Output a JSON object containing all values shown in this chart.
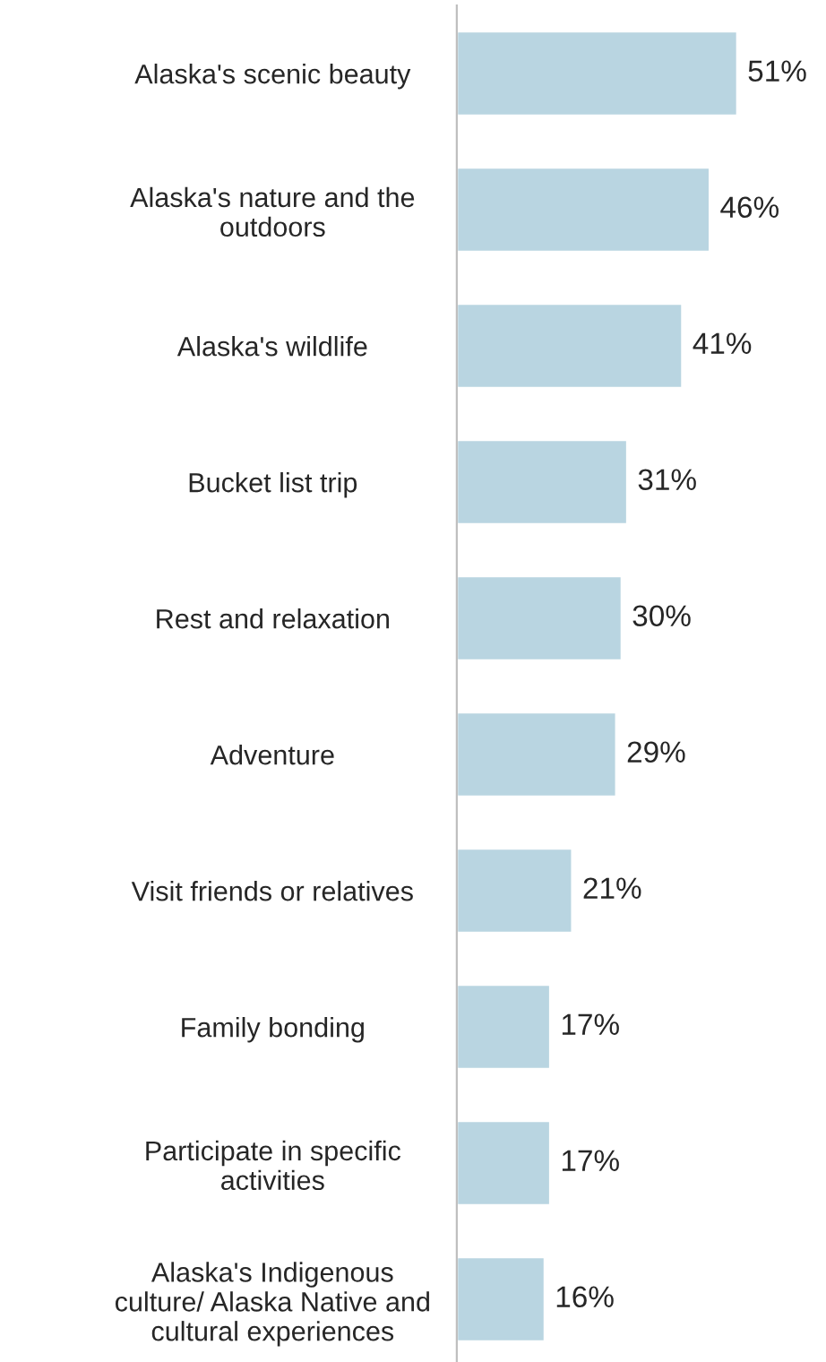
{
  "chart_data": {
    "type": "bar",
    "orientation": "horizontal",
    "categories": [
      "Alaska's scenic beauty",
      "Alaska's nature and the outdoors",
      "Alaska's wildlife",
      "Bucket list trip",
      "Rest and relaxation",
      "Adventure",
      "Visit friends or relatives",
      "Family bonding",
      "Participate in specific activities",
      "Alaska's Indigenous culture/ Alaska Native and cultural experiences"
    ],
    "values": [
      51,
      46,
      41,
      31,
      30,
      29,
      21,
      17,
      17,
      16
    ],
    "value_labels": [
      "51%",
      "46%",
      "41%",
      "31%",
      "30%",
      "29%",
      "21%",
      "17%",
      "17%",
      "16%"
    ],
    "color": "#b9d5e1",
    "tick_labels": "y",
    "grid": false,
    "legend": false
  }
}
